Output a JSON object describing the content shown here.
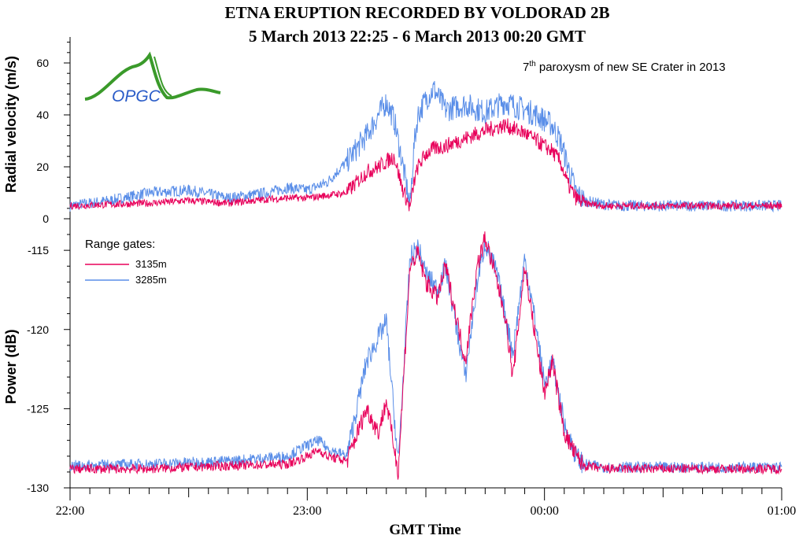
{
  "chart_data": {
    "type": "line",
    "title": "ETNA ERUPTION RECORDED BY VOLDORAD 2B",
    "subtitle": "5 March 2013 22:25 - 6 March 2013 00:20 GMT",
    "xlabel": "GMT Time",
    "x_ticks": [
      "22:00",
      "23:00",
      "00:00",
      "01:00"
    ],
    "annotation": {
      "base": "7",
      "sup": "th",
      "rest": " paroxysm of new SE Crater in 2013"
    },
    "logo_text": "OPGC",
    "legend": {
      "title": "Range gates:",
      "placement": "upper-left of lower panel"
    },
    "colors": {
      "gate_3135": "#e8005a",
      "gate_3285": "#5a8ee8",
      "logo_green": "#3a9a2a"
    },
    "x_minutes_note_hidden": "",
    "panels": [
      {
        "ylabel": "Radial velocity (m/s)",
        "ylim": [
          0,
          70
        ],
        "yticks": [
          0,
          20,
          40,
          60
        ],
        "series": [
          {
            "name": "3135m",
            "x": [
              0,
              10,
              20,
              30,
              40,
              50,
              55,
              60,
              65,
              70,
              75,
              78,
              80,
              82,
              84,
              86,
              87,
              88,
              90,
              92,
              95,
              100,
              105,
              110,
              115,
              118,
              120,
              122,
              124,
              126,
              128,
              130,
              135,
              140,
              145,
              150,
              155,
              160,
              165,
              170,
              175,
              180
            ],
            "y": [
              5,
              5.5,
              6,
              7,
              6,
              7.5,
              8,
              8,
              9,
              10,
              18,
              20,
              22,
              24,
              12,
              4,
              14,
              20,
              25,
              27,
              28,
              31,
              34,
              36,
              33,
              30,
              28,
              26,
              22,
              13,
              8,
              6,
              5,
              5,
              5,
              5,
              5,
              5,
              5,
              5,
              5,
              5
            ]
          },
          {
            "name": "3285m",
            "x": [
              0,
              10,
              20,
              30,
              40,
              50,
              55,
              60,
              65,
              70,
              75,
              78,
              80,
              82,
              84,
              86,
              87,
              88,
              90,
              92,
              95,
              100,
              105,
              110,
              115,
              118,
              120,
              122,
              124,
              126,
              128,
              130,
              135,
              140,
              145,
              150,
              155,
              160,
              165,
              170,
              175,
              180
            ],
            "y": [
              5,
              7,
              10,
              11,
              8,
              10,
              12,
              11,
              14,
              22,
              32,
              40,
              45,
              38,
              22,
              5,
              28,
              40,
              46,
              50,
              42,
              44,
              41,
              45,
              42,
              40,
              38,
              36,
              30,
              20,
              10,
              7,
              5.5,
              5,
              5,
              5,
              5,
              5,
              5,
              5,
              5,
              5
            ]
          }
        ]
      },
      {
        "ylabel": "Power (dB)",
        "ylim": [
          -130,
          -114
        ],
        "yticks": [
          -130,
          -125,
          -120,
          -115
        ],
        "series": [
          {
            "name": "3135m",
            "x": [
              0,
              20,
              40,
              55,
              60,
              63,
              65,
              70,
              75,
              78,
              80,
              83,
              86,
              88,
              90,
              93,
              95,
              100,
              103,
              105,
              108,
              110,
              112,
              115,
              118,
              120,
              122,
              125,
              128,
              130,
              135,
              140,
              160,
              180
            ],
            "y": [
              -128.8,
              -128.8,
              -128.6,
              -128.5,
              -128.0,
              -127.6,
              -128.0,
              -128.3,
              -125.0,
              -126.5,
              -124.5,
              -129.0,
              -116.0,
              -115.2,
              -117.0,
              -118.0,
              -116.0,
              -122.0,
              -116.0,
              -114.2,
              -117.0,
              -119.0,
              -123.0,
              -116.0,
              -121.0,
              -124.0,
              -122.0,
              -126.5,
              -128.0,
              -128.6,
              -128.8,
              -128.8,
              -128.8,
              -128.8
            ]
          },
          {
            "name": "3285m",
            "x": [
              0,
              20,
              40,
              55,
              60,
              63,
              65,
              70,
              75,
              78,
              80,
              83,
              86,
              88,
              90,
              93,
              95,
              100,
              103,
              105,
              108,
              110,
              112,
              115,
              118,
              120,
              122,
              125,
              128,
              130,
              135,
              140,
              160,
              180
            ],
            "y": [
              -128.6,
              -128.5,
              -128.3,
              -128.0,
              -127.3,
              -127.0,
              -127.5,
              -128.0,
              -122.0,
              -120.5,
              -119.5,
              -128.5,
              -115.5,
              -114.8,
              -116.5,
              -117.5,
              -116.0,
              -123.0,
              -117.0,
              -114.5,
              -116.5,
              -119.0,
              -121.5,
              -115.5,
              -120.0,
              -123.5,
              -122.0,
              -126.0,
              -128.0,
              -128.5,
              -128.7,
              -128.7,
              -128.7,
              -128.7
            ]
          }
        ]
      }
    ]
  }
}
